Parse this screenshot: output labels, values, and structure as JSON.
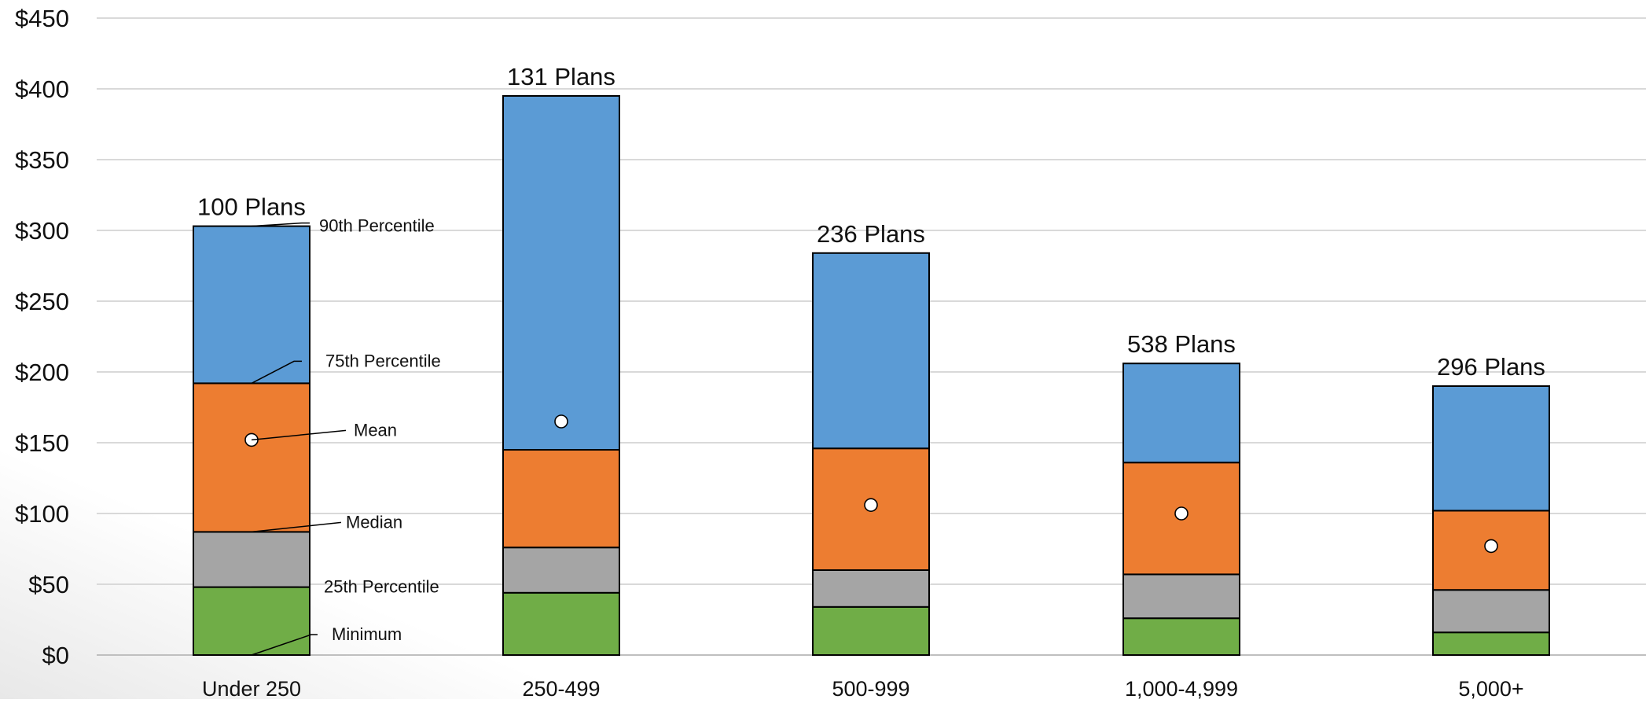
{
  "chart_data": {
    "type": "bar",
    "subtype": "stacked-box-percentile",
    "title": "",
    "xlabel": "",
    "ylabel": "",
    "ylim": [
      0,
      450
    ],
    "yticks": [
      0,
      50,
      100,
      150,
      200,
      250,
      300,
      350,
      400,
      450
    ],
    "ytick_labels": [
      "$0",
      "$50",
      "$100",
      "$150",
      "$200",
      "$250",
      "$300",
      "$350",
      "$400",
      "$450"
    ],
    "grid": true,
    "legend": "none",
    "categories": [
      "Under 250",
      "250-499",
      "500-999",
      "1,000-4,999",
      "5,000+"
    ],
    "plan_labels": [
      "100 Plans",
      "131 Plans",
      "236 Plans",
      "538 Plans",
      "296 Plans"
    ],
    "series": [
      {
        "name": "Minimum",
        "values": [
          0,
          0,
          0,
          0,
          0
        ]
      },
      {
        "name": "25th Percentile",
        "values": [
          48,
          44,
          34,
          26,
          16
        ]
      },
      {
        "name": "Median",
        "values": [
          87,
          76,
          60,
          57,
          46
        ]
      },
      {
        "name": "75th Percentile",
        "values": [
          192,
          145,
          146,
          136,
          102
        ]
      },
      {
        "name": "90th Percentile",
        "values": [
          303,
          395,
          284,
          206,
          190
        ]
      },
      {
        "name": "Mean",
        "values": [
          152,
          165,
          106,
          100,
          77
        ]
      }
    ],
    "annotations": [
      {
        "text": "90th Percentile",
        "category": "Under 250",
        "level": 303
      },
      {
        "text": "75th Percentile",
        "category": "Under 250",
        "level": 192
      },
      {
        "text": "Mean",
        "category": "Under 250",
        "level": 152
      },
      {
        "text": "Median",
        "category": "Under 250",
        "level": 87
      },
      {
        "text": "25th Percentile",
        "category": "Under 250",
        "level": 48
      },
      {
        "text": "Minimum",
        "category": "Under 250",
        "level": 0
      }
    ],
    "colors": {
      "min_to_p25": "#70ad47",
      "p25_to_median": "#a5a5a5",
      "median_to_p75": "#ed7d31",
      "p75_to_p90": "#5b9bd5",
      "mean_marker": "#ffffff",
      "grid": "#d9d9d9",
      "outline": "#000000"
    }
  }
}
